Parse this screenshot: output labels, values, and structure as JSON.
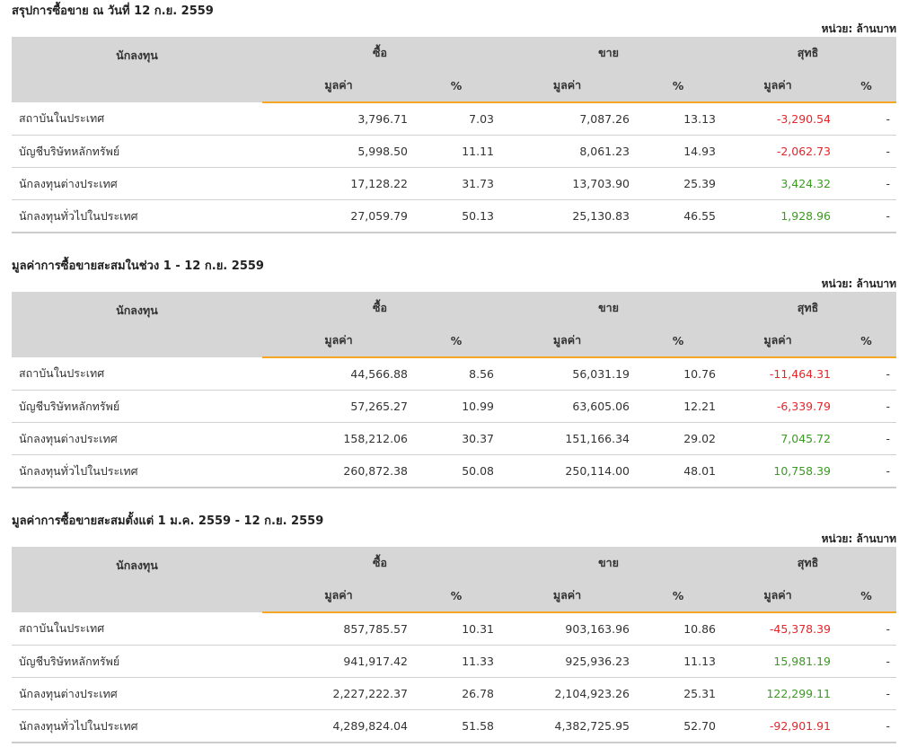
{
  "unit_label": "หน่วย: ล้านบาท",
  "headers": {
    "investor": "นักลงทุน",
    "buy": "ซื้อ",
    "sell": "ขาย",
    "net": "สุทธิ",
    "value": "มูลค่า",
    "percent": "%"
  },
  "sections": [
    {
      "title": "สรุปการซื้อขาย ณ วันที่ 12 ก.ย. 2559",
      "rows": [
        {
          "investor": "สถาบันในประเทศ",
          "buy_value": "3,796.71",
          "buy_pct": "7.03",
          "sell_value": "7,087.26",
          "sell_pct": "13.13",
          "net_value": "-3,290.54",
          "net_pct": "-",
          "net_sign": "neg"
        },
        {
          "investor": "บัญชีบริษัทหลักทรัพย์",
          "buy_value": "5,998.50",
          "buy_pct": "11.11",
          "sell_value": "8,061.23",
          "sell_pct": "14.93",
          "net_value": "-2,062.73",
          "net_pct": "-",
          "net_sign": "neg"
        },
        {
          "investor": "นักลงทุนต่างประเทศ",
          "buy_value": "17,128.22",
          "buy_pct": "31.73",
          "sell_value": "13,703.90",
          "sell_pct": "25.39",
          "net_value": "3,424.32",
          "net_pct": "-",
          "net_sign": "pos"
        },
        {
          "investor": "นักลงทุนทั่วไปในประเทศ",
          "buy_value": "27,059.79",
          "buy_pct": "50.13",
          "sell_value": "25,130.83",
          "sell_pct": "46.55",
          "net_value": "1,928.96",
          "net_pct": "-",
          "net_sign": "pos"
        }
      ]
    },
    {
      "title": "มูลค่าการซื้อขายสะสมในช่วง 1 - 12 ก.ย. 2559",
      "rows": [
        {
          "investor": "สถาบันในประเทศ",
          "buy_value": "44,566.88",
          "buy_pct": "8.56",
          "sell_value": "56,031.19",
          "sell_pct": "10.76",
          "net_value": "-11,464.31",
          "net_pct": "-",
          "net_sign": "neg"
        },
        {
          "investor": "บัญชีบริษัทหลักทรัพย์",
          "buy_value": "57,265.27",
          "buy_pct": "10.99",
          "sell_value": "63,605.06",
          "sell_pct": "12.21",
          "net_value": "-6,339.79",
          "net_pct": "-",
          "net_sign": "neg"
        },
        {
          "investor": "นักลงทุนต่างประเทศ",
          "buy_value": "158,212.06",
          "buy_pct": "30.37",
          "sell_value": "151,166.34",
          "sell_pct": "29.02",
          "net_value": "7,045.72",
          "net_pct": "-",
          "net_sign": "pos"
        },
        {
          "investor": "นักลงทุนทั่วไปในประเทศ",
          "buy_value": "260,872.38",
          "buy_pct": "50.08",
          "sell_value": "250,114.00",
          "sell_pct": "48.01",
          "net_value": "10,758.39",
          "net_pct": "-",
          "net_sign": "pos"
        }
      ]
    },
    {
      "title": "มูลค่าการซื้อขายสะสมตั้งแต่ 1 ม.ค. 2559 - 12 ก.ย. 2559",
      "rows": [
        {
          "investor": "สถาบันในประเทศ",
          "buy_value": "857,785.57",
          "buy_pct": "10.31",
          "sell_value": "903,163.96",
          "sell_pct": "10.86",
          "net_value": "-45,378.39",
          "net_pct": "-",
          "net_sign": "neg"
        },
        {
          "investor": "บัญชีบริษัทหลักทรัพย์",
          "buy_value": "941,917.42",
          "buy_pct": "11.33",
          "sell_value": "925,936.23",
          "sell_pct": "11.13",
          "net_value": "15,981.19",
          "net_pct": "-",
          "net_sign": "pos"
        },
        {
          "investor": "นักลงทุนต่างประเทศ",
          "buy_value": "2,227,222.37",
          "buy_pct": "26.78",
          "sell_value": "2,104,923.26",
          "sell_pct": "25.31",
          "net_value": "122,299.11",
          "net_pct": "-",
          "net_sign": "pos"
        },
        {
          "investor": "นักลงทุนทั่วไปในประเทศ",
          "buy_value": "4,289,824.04",
          "buy_pct": "51.58",
          "sell_value": "4,382,725.95",
          "sell_pct": "52.70",
          "net_value": "-92,901.91",
          "net_pct": "-",
          "net_sign": "neg"
        }
      ]
    }
  ],
  "colors": {
    "header_bg": "#d6d6d6",
    "accent_underline": "#f5a623",
    "negative": "#e3262b",
    "positive": "#3b9a22"
  }
}
